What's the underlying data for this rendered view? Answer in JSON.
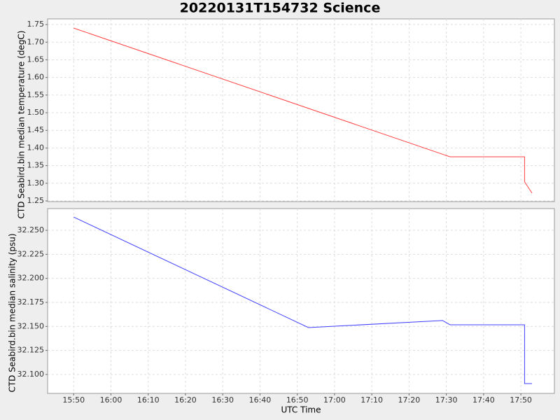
{
  "chart_data": [
    {
      "type": "line",
      "title": "20220131T154732 Science",
      "ylabel": "CTD Seabird.bin median temperature (degC)",
      "x": [
        "15:50",
        "17:31",
        "17:51",
        "17:51",
        "17:53"
      ],
      "series": [
        {
          "color": "#ff4040",
          "values": [
            1.74,
            1.375,
            1.375,
            1.304,
            1.272
          ]
        }
      ],
      "xlim": [
        "15:43",
        "17:59"
      ],
      "ylim": [
        1.248,
        1.766
      ],
      "yticks": [
        {
          "value": 1.25,
          "label": "1.25"
        },
        {
          "value": 1.3,
          "label": "1.30"
        },
        1.35,
        {
          "value": 1.4,
          "label": "1.40"
        },
        1.45,
        {
          "value": 1.5,
          "label": "1.50"
        },
        1.55,
        {
          "value": 1.6,
          "label": "1.60"
        },
        1.65,
        {
          "value": 1.7,
          "label": "1.70"
        },
        1.75
      ],
      "grid": true
    },
    {
      "type": "line",
      "ylabel": "CTD Seabird.bin median salinity (psu)",
      "xlabel": "UTC Time",
      "x": [
        "15:50",
        "16:53",
        "17:29",
        "17:31",
        "17:51",
        "17:51",
        "17:53"
      ],
      "series": [
        {
          "color": "#4040ff",
          "values": [
            32.2638,
            32.1488,
            32.1561,
            32.1517,
            32.1517,
            32.0905,
            32.0905
          ]
        }
      ],
      "xlim": [
        "15:43",
        "17:59"
      ],
      "xticks": [
        "15:50",
        "16:00",
        "16:10",
        "16:20",
        "16:30",
        "16:40",
        "16:50",
        "17:00",
        "17:10",
        "17:20",
        "17:30",
        "17:40",
        "17:50"
      ],
      "ylim": [
        32.0803,
        32.2726
      ],
      "yticks": [
        {
          "value": 32.1,
          "label": "32.100"
        },
        32.125,
        {
          "value": 32.15,
          "label": "32.150"
        },
        32.175,
        {
          "value": 32.2,
          "label": "32.200"
        },
        32.225,
        {
          "value": 32.25,
          "label": "32.250"
        }
      ],
      "grid": true
    }
  ]
}
